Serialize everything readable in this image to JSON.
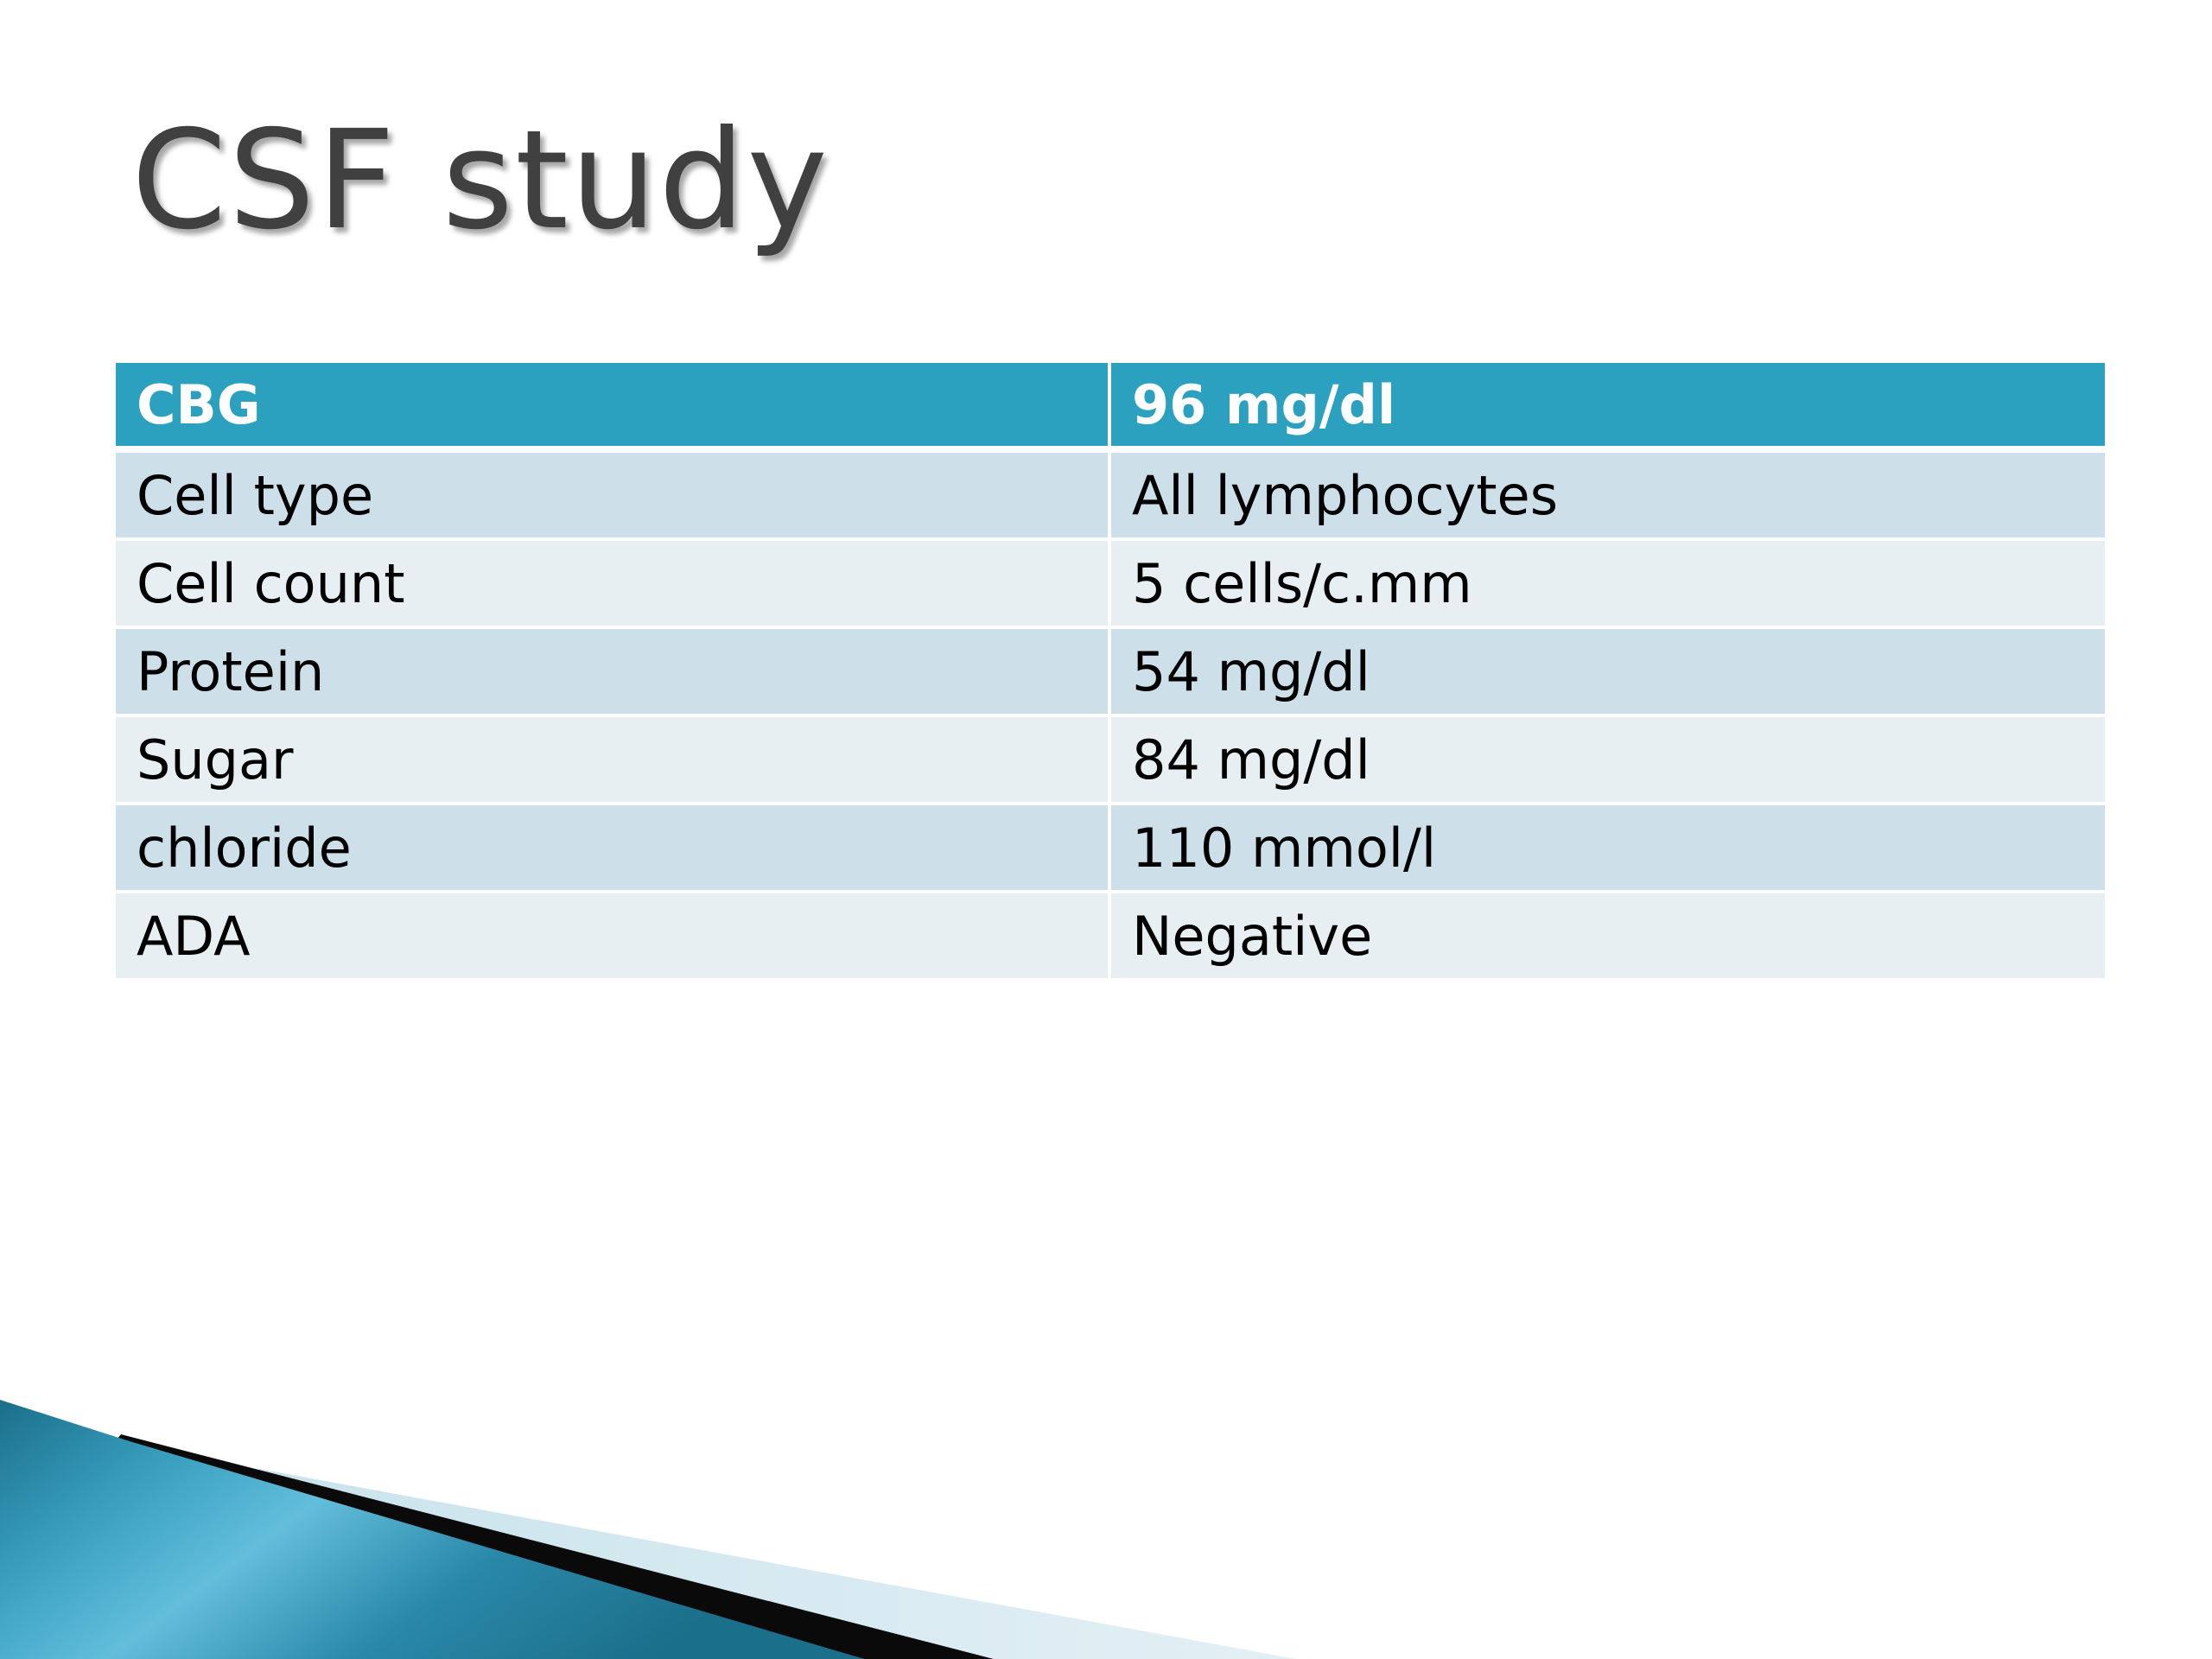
{
  "slide": {
    "title": "CSF study"
  },
  "table": {
    "header": {
      "label": "CBG",
      "value": "96 mg/dl"
    },
    "rows": [
      {
        "label": "Cell type",
        "value": "All lymphocytes"
      },
      {
        "label": "Cell count",
        "value": "5 cells/c.mm"
      },
      {
        "label": "Protein",
        "value": "54 mg/dl"
      },
      {
        "label": "Sugar",
        "value": "84 mg/dl"
      },
      {
        "label": "chloride",
        "value": "110 mmol/l"
      },
      {
        "label": "ADA",
        "value": "Negative"
      }
    ]
  },
  "colors": {
    "header_bg": "#2ba1bf",
    "row_odd_bg": "#cde0e9",
    "row_even_bg": "#e8eff3",
    "title_text": "#404040",
    "accent_teal": "#1f7f9c"
  }
}
